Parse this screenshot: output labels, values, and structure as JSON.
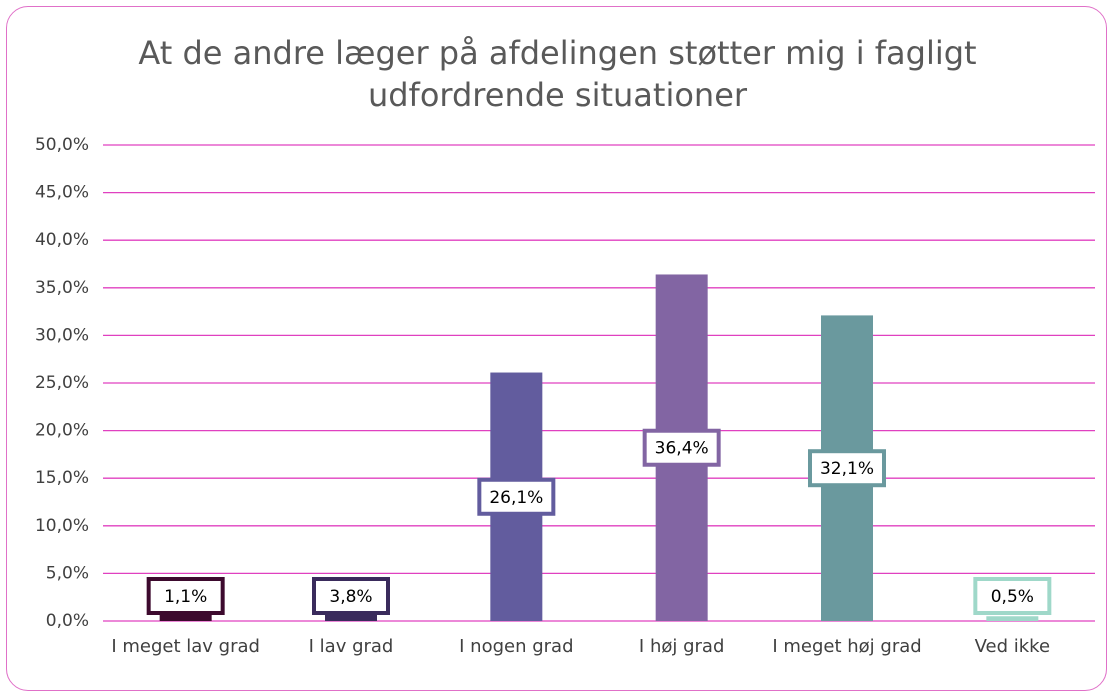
{
  "chart_data": {
    "type": "bar",
    "title": "At de andre læger på afdelingen støtter mig i fagligt udfordrende situationer",
    "categories": [
      "I meget lav grad",
      "I lav grad",
      "I nogen grad",
      "I høj grad",
      "I meget høj grad",
      "Ved ikke"
    ],
    "values": [
      1.1,
      3.8,
      26.1,
      36.4,
      32.1,
      0.5
    ],
    "value_labels": [
      "1,1%",
      "3,8%",
      "26,1%",
      "36,4%",
      "32,1%",
      "0,5%"
    ],
    "colors": [
      "#3d0a2e",
      "#3a2b5c",
      "#625c9e",
      "#8265a3",
      "#6a999e",
      "#9fd8c9"
    ],
    "ylim": [
      0,
      50
    ],
    "yticks": [
      {
        "value": 0,
        "label": "0,0%"
      },
      {
        "value": 5,
        "label": "5,0%"
      },
      {
        "value": 10,
        "label": "10,0%"
      },
      {
        "value": 15,
        "label": "15,0%"
      },
      {
        "value": 20,
        "label": "20,0%"
      },
      {
        "value": 25,
        "label": "25,0%"
      },
      {
        "value": 30,
        "label": "30,0%"
      },
      {
        "value": 35,
        "label": "35,0%"
      },
      {
        "value": 40,
        "label": "40,0%"
      },
      {
        "value": 45,
        "label": "45,0%"
      },
      {
        "value": 50,
        "label": "50,0%"
      }
    ],
    "grid": true,
    "grid_color": "#e040c0"
  }
}
